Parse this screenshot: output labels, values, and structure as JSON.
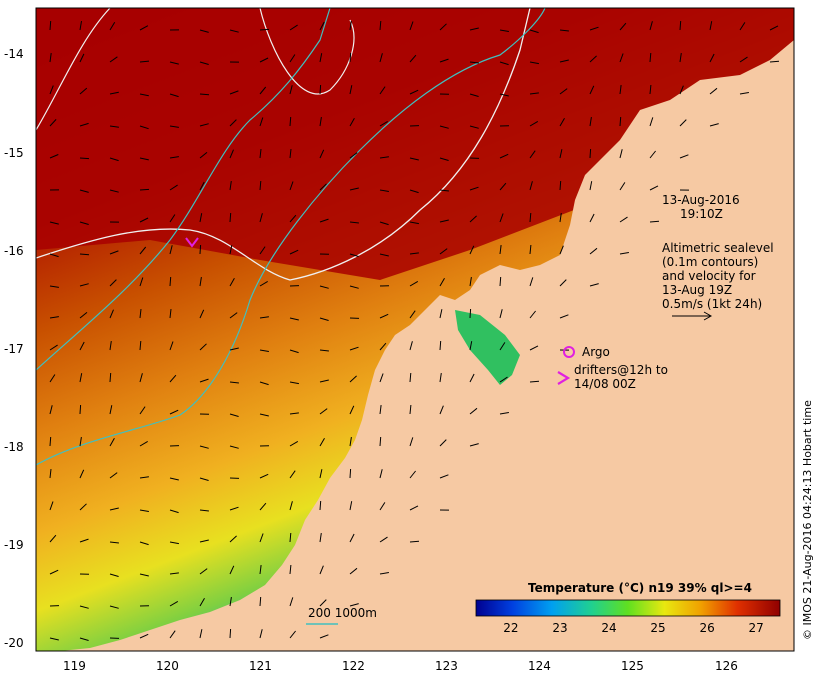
{
  "map": {
    "date": "13-Aug-2016",
    "time": "19:10Z",
    "altimetry_lines": [
      "Altimetric sealevel",
      "(0.1m contours)",
      "and velocity for",
      "13-Aug 19Z"
    ],
    "velocity_scale": "0.5m/s (1kt 24h)",
    "argo_label": "Argo",
    "drifters_line1": "drifters@12h to",
    "drifters_line2": "14/08 00Z",
    "bathy_label": "200  1000m",
    "stamp": "© IMOS 21-Aug-2016 04:24:13 Hobart time"
  },
  "axes": {
    "lat_ticks": [
      "-14",
      "-15",
      "-16",
      "-17",
      "-18",
      "-19",
      "-20"
    ],
    "lon_ticks": [
      "119",
      "120",
      "121",
      "122",
      "123",
      "124",
      "125",
      "126"
    ]
  },
  "colorbar": {
    "title": "Temperature (°C) n19 39% ql>=4",
    "ticks": [
      "22",
      "23",
      "24",
      "25",
      "26",
      "27"
    ],
    "range": [
      21.3,
      27.5
    ]
  },
  "colors": {
    "land": "#f6c9a3",
    "warm": "#a80000",
    "argo": "#e020e0",
    "contour": "#f0f0f0",
    "bathy": "#40c0c0"
  }
}
